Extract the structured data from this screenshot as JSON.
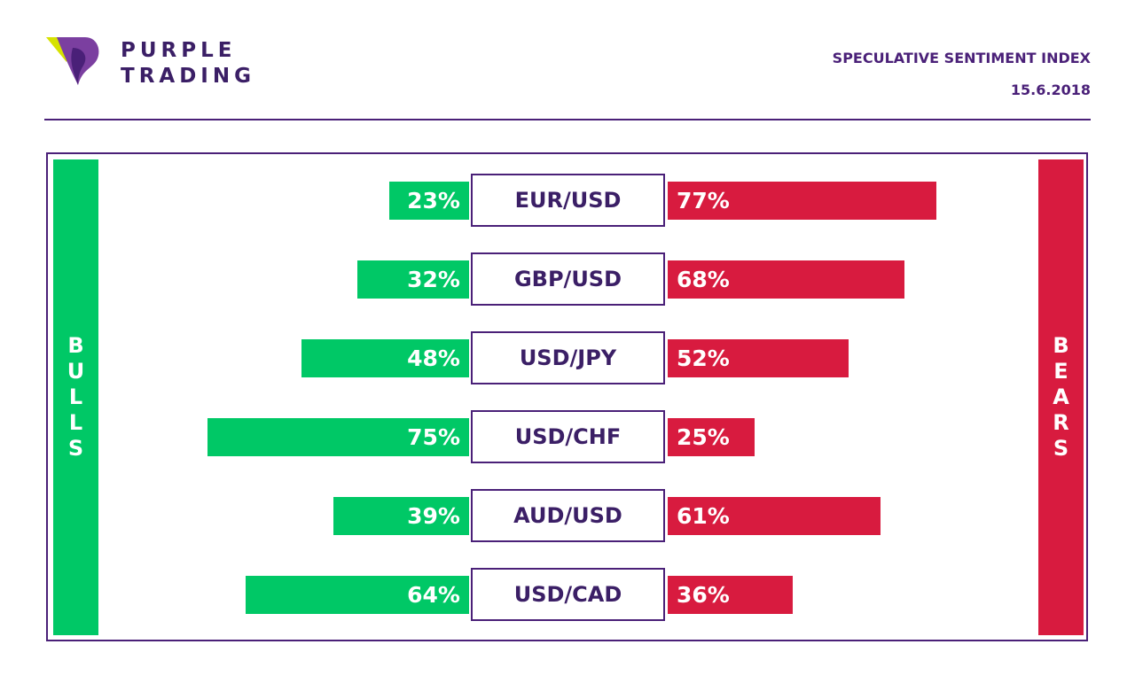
{
  "brand": {
    "logo_line1": "PURPLE",
    "logo_line2": "TRADING",
    "colors": {
      "purple": "#4a2078",
      "bull_green": "#00c866",
      "bear_red": "#d81b3f",
      "logo_yellow": "#d6e200"
    }
  },
  "header": {
    "title": "SPECULATIVE SENTIMENT INDEX",
    "date": "15.6.2018"
  },
  "sides": {
    "bulls": "BULLS",
    "bears": "BEARS"
  },
  "chart_data": {
    "type": "bar",
    "orientation": "horizontal-diverging",
    "categories": [
      "EUR/USD",
      "GBP/USD",
      "USD/JPY",
      "USD/CHF",
      "AUD/USD",
      "USD/CAD"
    ],
    "series": [
      {
        "name": "BULLS",
        "values": [
          23,
          32,
          48,
          75,
          39,
          64
        ],
        "color": "#00c866"
      },
      {
        "name": "BEARS",
        "values": [
          77,
          68,
          52,
          25,
          61,
          36
        ],
        "color": "#d81b3f"
      }
    ],
    "labels": {
      "BULLS": [
        "23%",
        "32%",
        "48%",
        "75%",
        "39%",
        "64%"
      ],
      "BEARS": [
        "77%",
        "68%",
        "52%",
        "25%",
        "61%",
        "36%"
      ]
    },
    "unit": "%",
    "xlim": [
      0,
      100
    ],
    "grid": false
  }
}
